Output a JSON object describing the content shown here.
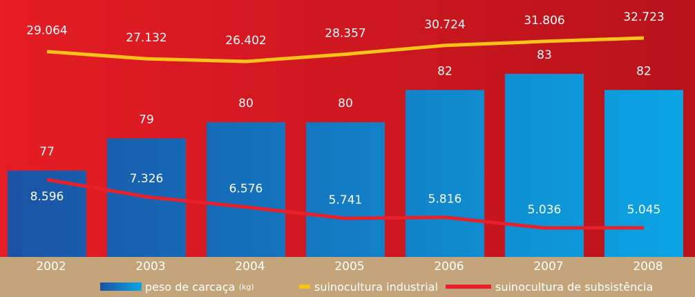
{
  "chart_data": {
    "type": "bar",
    "categories": [
      "2002",
      "2003",
      "2004",
      "2005",
      "2006",
      "2007",
      "2008"
    ],
    "series": [
      {
        "name": "peso de carcaça",
        "unit": "(kg)",
        "type": "bar",
        "color": "#0f8fd6",
        "values": [
          77,
          79,
          80,
          80,
          82,
          83,
          82
        ]
      },
      {
        "name": "suinocultura industrial",
        "type": "line",
        "color": "#f7c21a",
        "values": [
          29064,
          27132,
          26402,
          28357,
          30724,
          31806,
          32723
        ],
        "value_labels": [
          "29.064",
          "27.132",
          "26.402",
          "28.357",
          "30.724",
          "31.806",
          "32.723"
        ]
      },
      {
        "name": "suinocultura de subsistência",
        "type": "line",
        "color": "#e8202a",
        "values": [
          8596,
          7326,
          6576,
          5741,
          5816,
          5036,
          5045
        ],
        "value_labels": [
          "8.596",
          "7.326",
          "6.576",
          "5.741",
          "5.816",
          "5.036",
          "5.045"
        ]
      }
    ]
  }
}
